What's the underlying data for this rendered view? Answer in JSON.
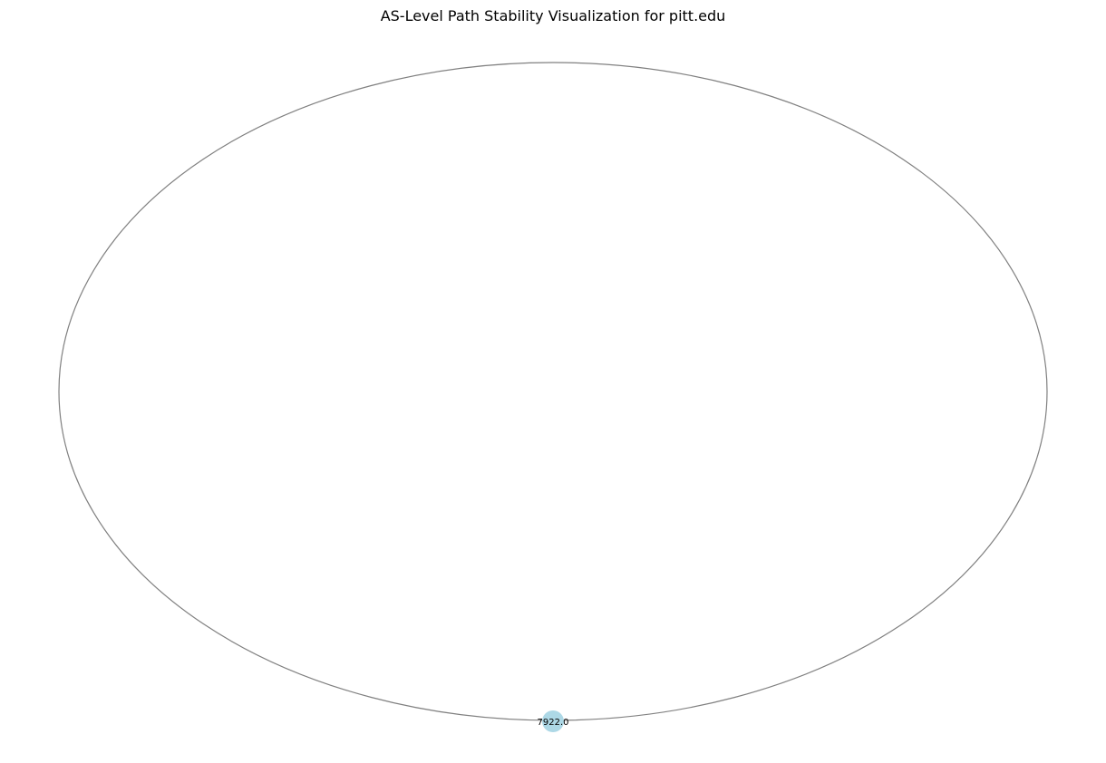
{
  "title": "AS-Level Path Stability Visualization for pitt.edu",
  "graph": {
    "nodes": [
      {
        "id": "7922.0",
        "label": "7922.0"
      }
    ],
    "edges": [
      {
        "source": "7922.0",
        "target": "7922.0",
        "kind": "self-loop"
      }
    ]
  },
  "style": {
    "node_color": "#add8e6",
    "edge_color": "#808080",
    "label_color": "#000000"
  }
}
